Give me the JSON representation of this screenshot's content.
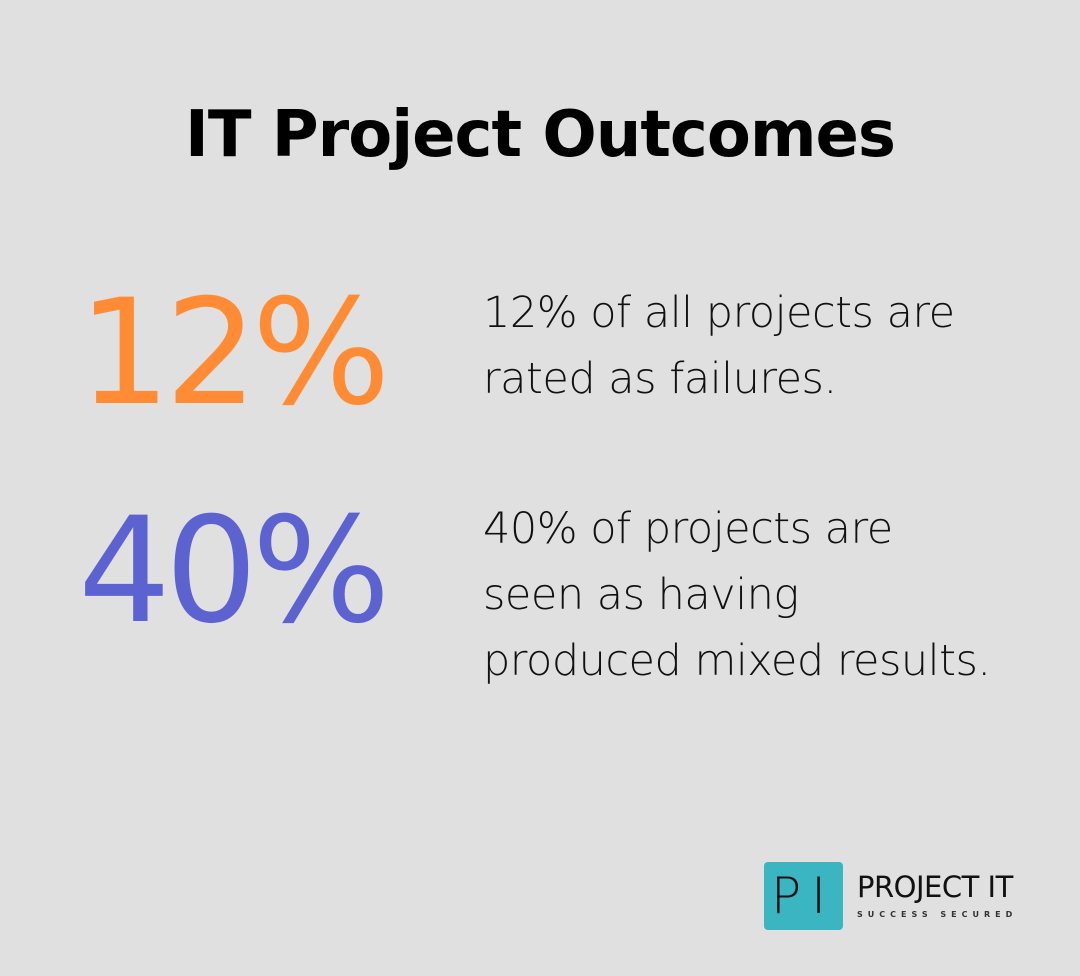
{
  "title": "IT Project Outcomes",
  "stats": [
    {
      "value": "12%",
      "color": "#ff8c35",
      "description": "12% of all projects are rated as failures."
    },
    {
      "value": "40%",
      "color": "#5c63d0",
      "description": "40% of projects are seen as having produced mixed results."
    }
  ],
  "logo": {
    "badge": "PI",
    "badge_color": "#3ab5c1",
    "name": "PROJECT IT",
    "tagline": "SUCCESS SECURED"
  }
}
